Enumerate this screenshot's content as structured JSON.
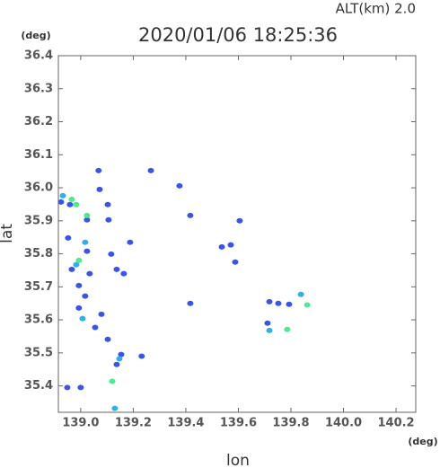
{
  "chart_data": {
    "type": "scatter",
    "title": "2020/01/06 18:25:36",
    "subtitle": "ALT(km)  2.0",
    "y_unit": "(deg)",
    "x_unit": "(deg)",
    "x_label": "lon",
    "y_label": "lat",
    "xlim": [
      138.915,
      140.275
    ],
    "ylim": [
      35.32,
      36.4
    ],
    "xticks": [
      {
        "value": 139.0,
        "label": "139.0"
      },
      {
        "value": 139.2,
        "label": "139.2"
      },
      {
        "value": 139.4,
        "label": "139.4"
      },
      {
        "value": 139.6,
        "label": "139.6"
      },
      {
        "value": 139.8,
        "label": "139.8"
      },
      {
        "value": 140.0,
        "label": "140.0"
      },
      {
        "value": 140.2,
        "label": "140.2"
      }
    ],
    "yticks": [
      {
        "value": 35.4,
        "label": "35.4"
      },
      {
        "value": 35.5,
        "label": "35.5"
      },
      {
        "value": 35.6,
        "label": "35.6"
      },
      {
        "value": 35.7,
        "label": "35.7"
      },
      {
        "value": 35.8,
        "label": "35.8"
      },
      {
        "value": 35.9,
        "label": "35.9"
      },
      {
        "value": 36.0,
        "label": "36.0"
      },
      {
        "value": 36.1,
        "label": "36.1"
      },
      {
        "value": 36.2,
        "label": "36.2"
      },
      {
        "value": 36.3,
        "label": "36.3"
      },
      {
        "value": 36.4,
        "label": "36.4"
      }
    ],
    "series": [
      {
        "color": "#3a55e6",
        "x": [
          138.925,
          138.959,
          138.952,
          138.966,
          138.993,
          139.017,
          139.024,
          139.034,
          139.055,
          139.079,
          139.103,
          139.106,
          139.116,
          139.137,
          139.154,
          139.164,
          139.188,
          139.267,
          139.376,
          139.417,
          139.537,
          139.571,
          139.588,
          139.605,
          139.718,
          139.752,
          139.793,
          139.711,
          138.949,
          139.0,
          139.103,
          139.137,
          139.232,
          139.417,
          138.993,
          139.024,
          139.068,
          139.072
        ],
        "values": [
          35.957,
          35.949,
          35.848,
          35.753,
          35.636,
          35.672,
          35.903,
          35.74,
          35.577,
          35.617,
          35.949,
          35.903,
          35.799,
          35.753,
          35.495,
          35.74,
          35.835,
          36.052,
          36.006,
          35.916,
          35.821,
          35.827,
          35.775,
          35.9,
          35.655,
          35.65,
          35.647,
          35.59,
          35.395,
          35.395,
          35.541,
          35.465,
          35.49,
          35.65,
          35.704,
          35.808,
          36.052,
          35.995
        ]
      },
      {
        "color": "#30b0e8",
        "x": [
          139.007,
          138.983,
          139.147,
          139.13,
          139.718,
          139.838,
          139.017,
          138.932
        ],
        "values": [
          35.604,
          35.767,
          35.482,
          35.332,
          35.568,
          35.677,
          35.835,
          35.976
        ]
      },
      {
        "color": "#50e890",
        "x": [
          138.993,
          138.966,
          139.024,
          139.786,
          139.862,
          139.12,
          138.983
        ],
        "values": [
          35.78,
          35.965,
          35.916,
          35.571,
          35.645,
          35.414,
          35.949
        ]
      }
    ]
  }
}
